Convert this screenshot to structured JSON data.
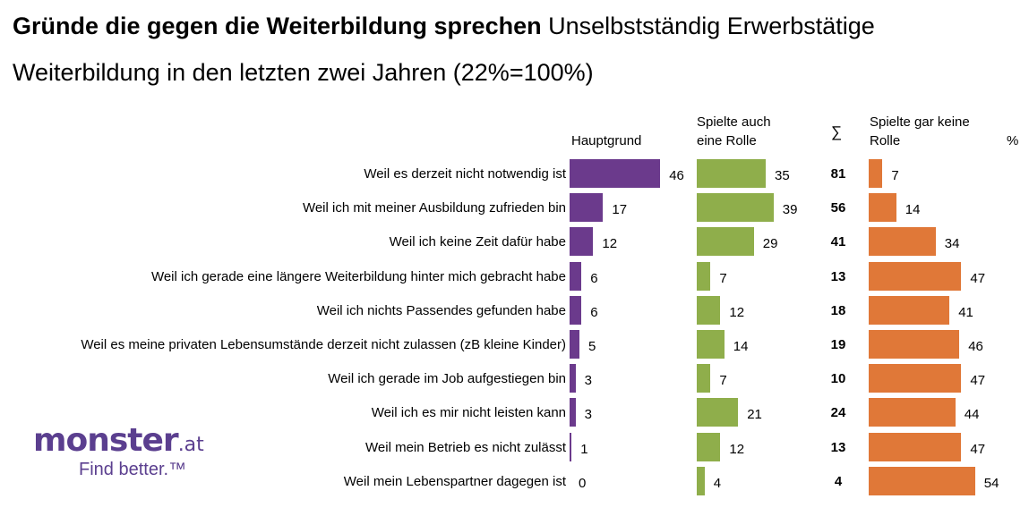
{
  "title_bold": "Gründe die gegen die Weiterbildung sprechen",
  "title_rest": "Unselbstständig Erwerbstätige",
  "subtitle": "Weiterbildung in den letzten zwei Jahren (22%=100%)",
  "columns": {
    "hauptgrund": "Hauptgrund",
    "auch_line1": "Spielte auch",
    "auch_line2": "eine Rolle",
    "sum": "∑",
    "keine_line1": "Spielte gar keine",
    "keine_line2": "Rolle",
    "percent": "%"
  },
  "logo": {
    "word": "monster",
    "tld": ".at",
    "tagline": "Find better.™"
  },
  "colors": {
    "hauptgrund": "#6b3a8c",
    "auch": "#8fae4b",
    "keine": "#e07838"
  },
  "chart_data": {
    "type": "bar",
    "title": "Gründe die gegen die Weiterbildung sprechen Unselbstständig Erwerbstätige",
    "subtitle": "Weiterbildung in den letzten zwei Jahren (22%=100%)",
    "unit": "%",
    "categories": [
      "Weil es derzeit nicht notwendig ist",
      "Weil ich mit meiner Ausbildung zufrieden bin",
      "Weil ich keine Zeit dafür habe",
      "Weil ich gerade eine längere Weiterbildung hinter mich gebracht habe",
      "Weil ich nichts Passendes gefunden habe",
      "Weil es meine privaten Lebensumstände derzeit nicht zulassen (zB kleine Kinder)",
      "Weil ich gerade im Job aufgestiegen bin",
      "Weil ich es mir nicht leisten kann",
      "Weil mein Betrieb es nicht zulässt",
      "Weil mein Lebenspartner dagegen ist"
    ],
    "series": [
      {
        "name": "Hauptgrund",
        "values": [
          46,
          17,
          12,
          6,
          6,
          5,
          3,
          3,
          1,
          0
        ]
      },
      {
        "name": "Spielte auch eine Rolle",
        "values": [
          35,
          39,
          29,
          7,
          12,
          14,
          7,
          21,
          12,
          4
        ]
      },
      {
        "name": "∑",
        "values": [
          81,
          56,
          41,
          13,
          18,
          19,
          10,
          24,
          13,
          4
        ]
      },
      {
        "name": "Spielte gar keine Rolle",
        "values": [
          7,
          14,
          34,
          47,
          41,
          46,
          47,
          44,
          47,
          54
        ]
      }
    ]
  }
}
